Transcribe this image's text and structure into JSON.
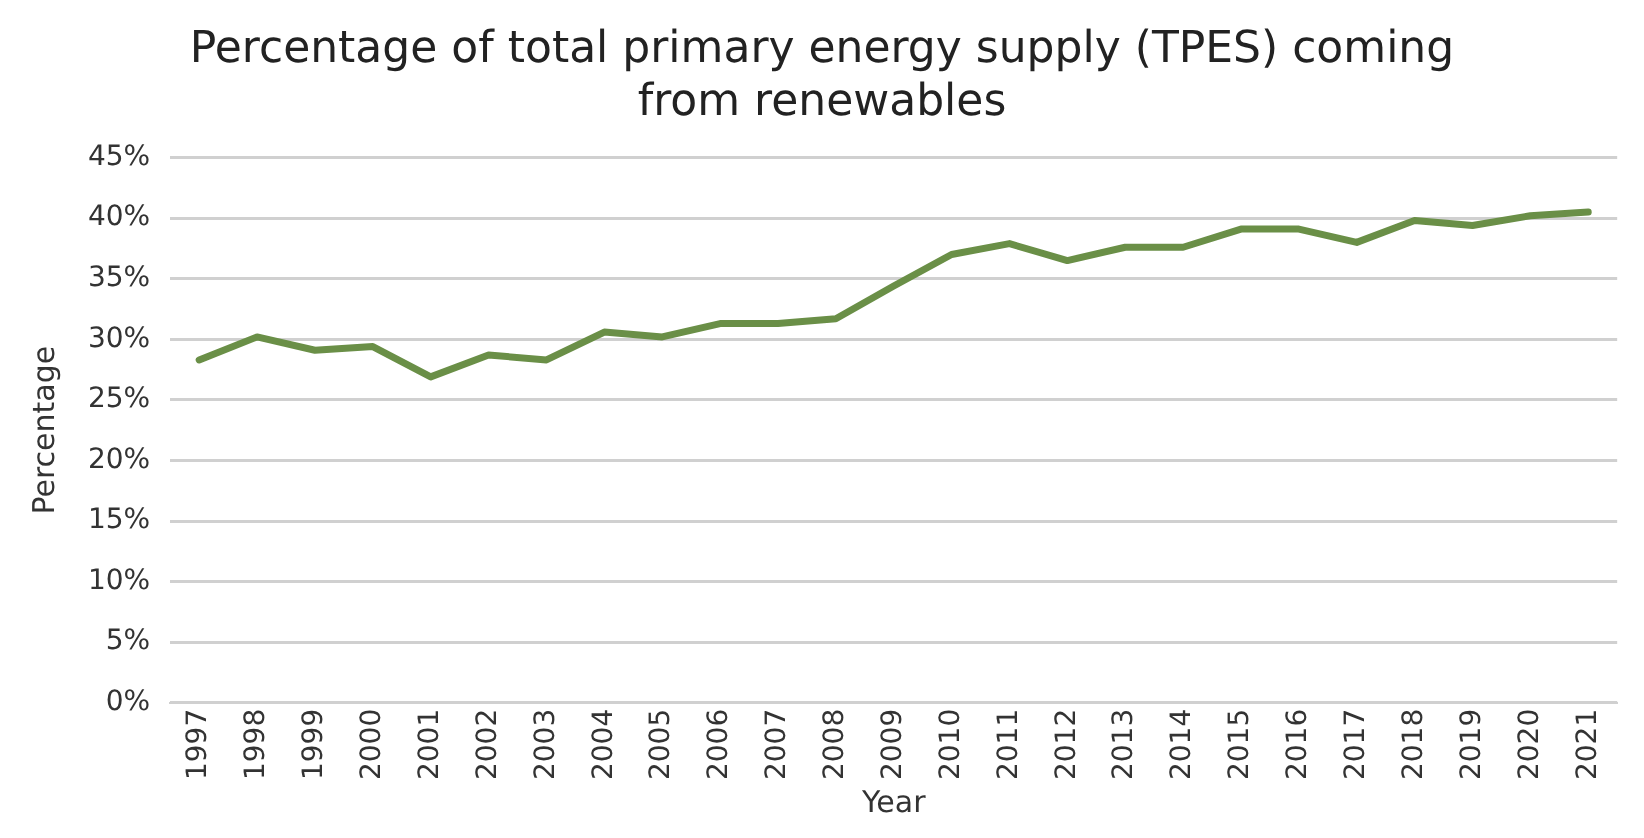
{
  "chart_data": {
    "type": "line",
    "title": "Percentage of total primary energy supply (TPES) coming from renewables",
    "xlabel": "Year",
    "ylabel": "Percentage",
    "categories": [
      "1997",
      "1998",
      "1999",
      "2000",
      "2001",
      "2002",
      "2003",
      "2004",
      "2005",
      "2006",
      "2007",
      "2008",
      "2009",
      "2010",
      "2011",
      "2012",
      "2013",
      "2014",
      "2015",
      "2016",
      "2017",
      "2018",
      "2019",
      "2020",
      "2021"
    ],
    "series": [
      {
        "color": "#6a8f47",
        "values": [
          28.3,
          30.2,
          29.1,
          29.4,
          26.9,
          28.7,
          28.3,
          30.6,
          30.2,
          31.3,
          31.3,
          31.7,
          34.4,
          37.0,
          37.9,
          36.5,
          37.6,
          37.6,
          39.1,
          39.1,
          38.0,
          39.8,
          39.4,
          40.2,
          40.5
        ]
      }
    ],
    "ylim": [
      0,
      45
    ],
    "yticks": [
      {
        "value": 0,
        "label": "0%"
      },
      {
        "value": 5,
        "label": "5%"
      },
      {
        "value": 10,
        "label": "10%"
      },
      {
        "value": 15,
        "label": "15%"
      },
      {
        "value": 20,
        "label": "20%"
      },
      {
        "value": 25,
        "label": "25%"
      },
      {
        "value": 30,
        "label": "30%"
      },
      {
        "value": 35,
        "label": "35%"
      },
      {
        "value": 40,
        "label": "40%"
      },
      {
        "value": 45,
        "label": "45%"
      }
    ],
    "grid": "y",
    "legend": false,
    "marker": "none",
    "line_style": "solid"
  }
}
